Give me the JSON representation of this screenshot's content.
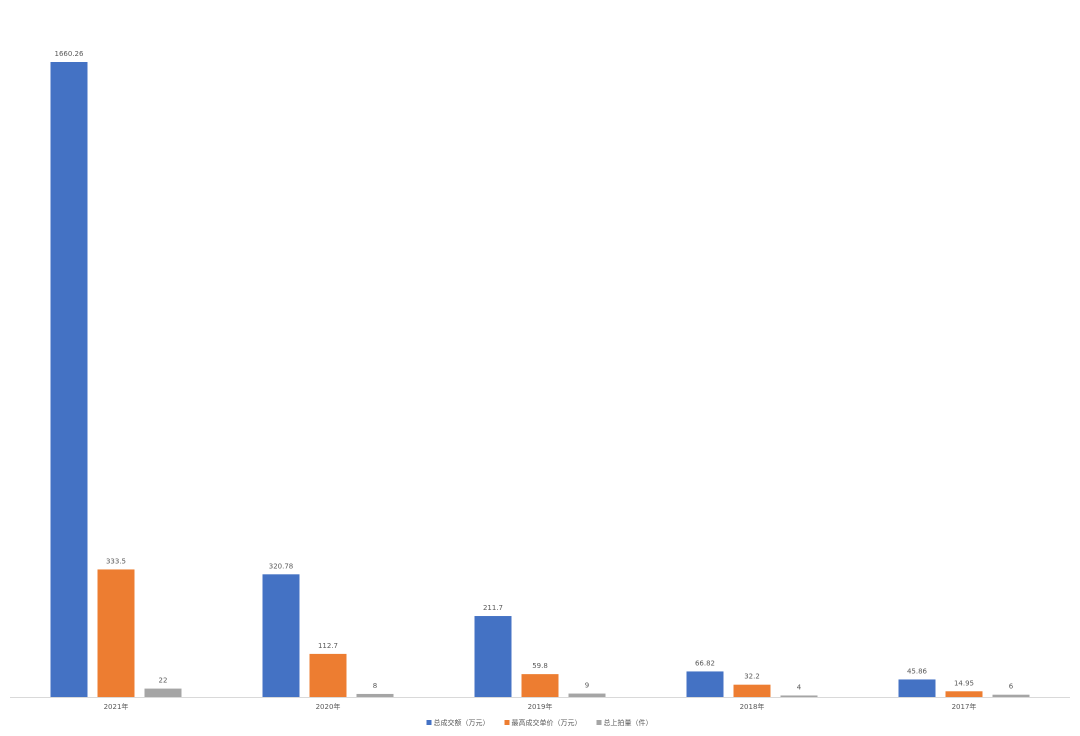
{
  "chart_data": {
    "type": "bar",
    "categories": [
      "2021年",
      "2020年",
      "2019年",
      "2018年",
      "2017年"
    ],
    "series": [
      {
        "name": "总成交额（万元）",
        "color": "#4472c4",
        "values": [
          1660.26,
          320.78,
          211.7,
          66.82,
          45.86
        ]
      },
      {
        "name": "最高成交单价（万元）",
        "color": "#ed7d31",
        "values": [
          333.5,
          112.7,
          59.8,
          32.2,
          14.95
        ]
      },
      {
        "name": "总上拍量（件）",
        "color": "#a5a5a5",
        "values": [
          22,
          8,
          9,
          4,
          6
        ]
      }
    ],
    "legend": "bottom",
    "grid": false
  }
}
